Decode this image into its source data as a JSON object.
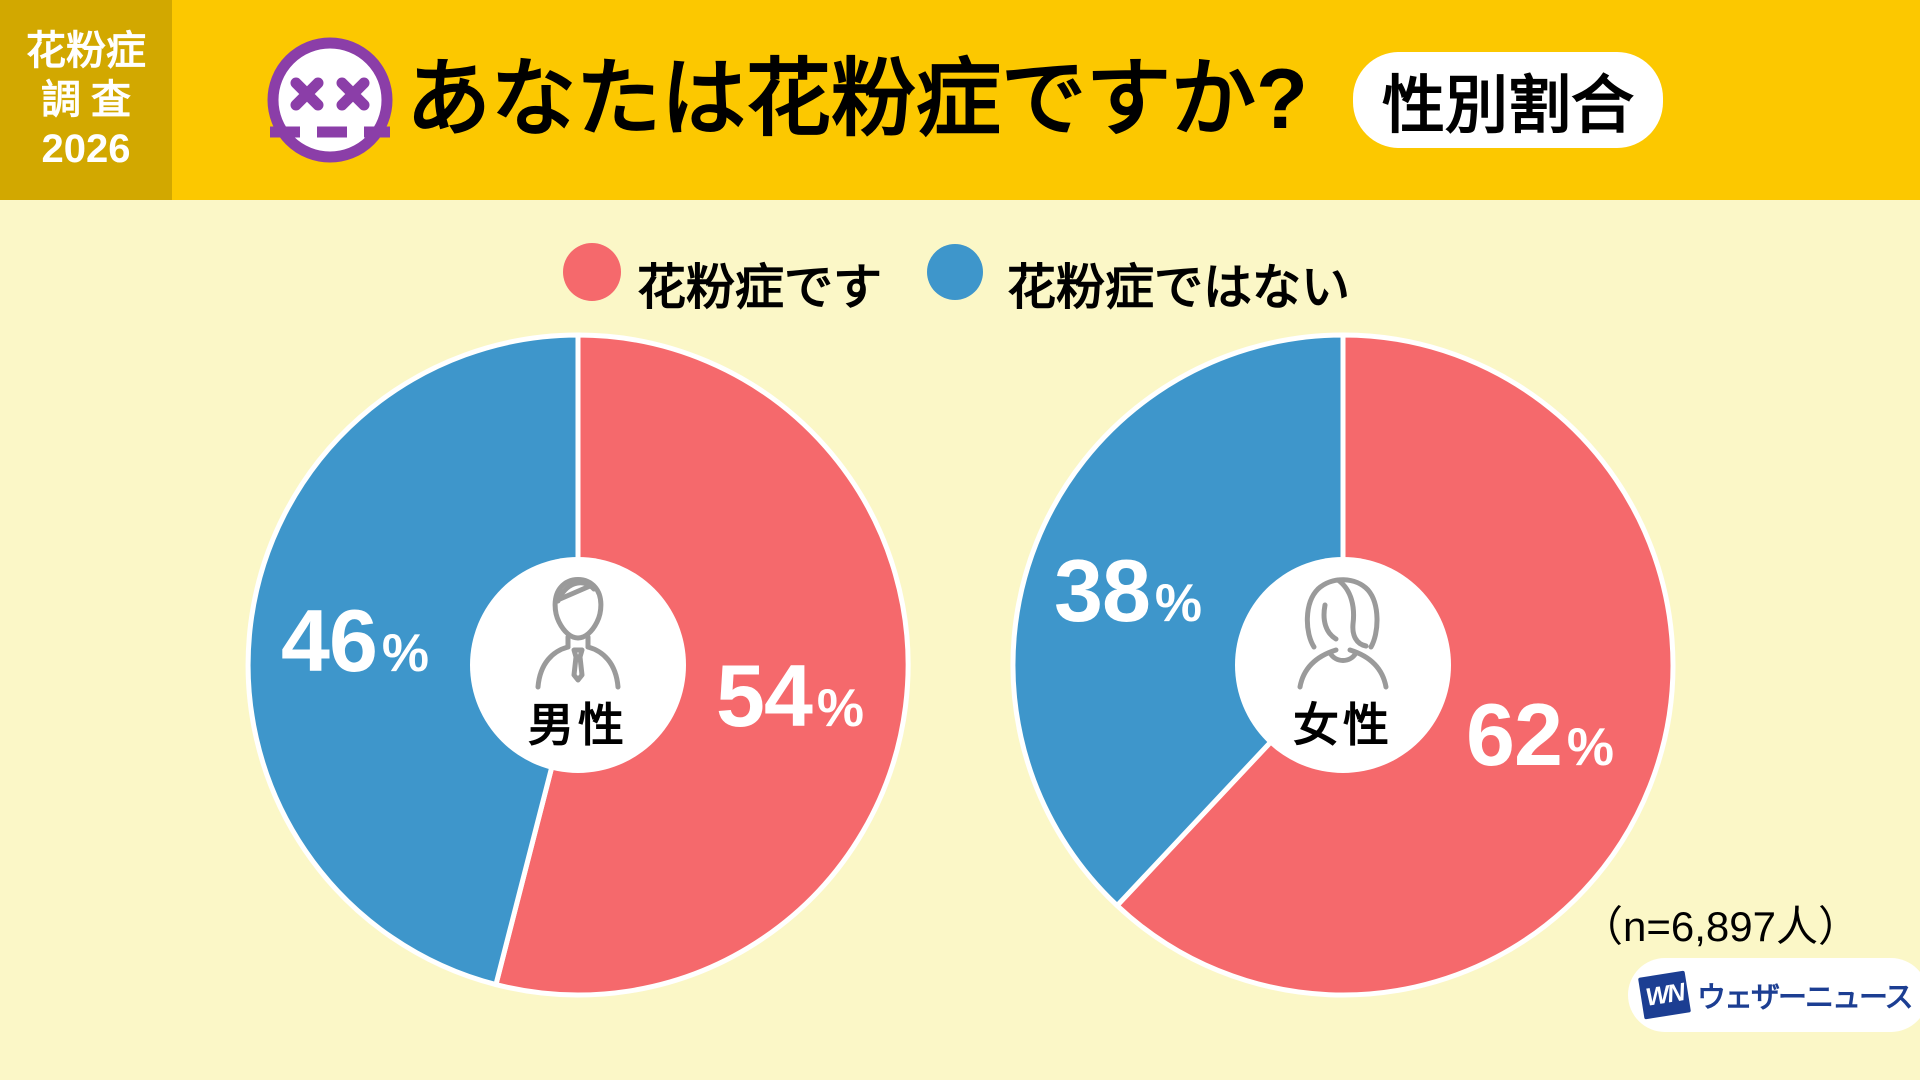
{
  "header": {
    "survey_badge_lines": [
      "花粉症",
      "調査",
      "2026"
    ],
    "title": "あなたは花粉症ですか?",
    "category_badge": "性別割合"
  },
  "legend": {
    "items": [
      {
        "label": "花粉症です",
        "color": "#F5696C"
      },
      {
        "label": "花粉症ではない",
        "color": "#3E96CB"
      }
    ]
  },
  "chart_data": [
    {
      "type": "pie",
      "group_label": "男性",
      "start_angle": "12-o'clock",
      "direction": "clockwise",
      "slices": [
        {
          "name": "花粉症です",
          "value": 54,
          "unit": "%",
          "color": "#F5696C"
        },
        {
          "name": "花粉症ではない",
          "value": 46,
          "unit": "%",
          "color": "#3E96CB"
        }
      ]
    },
    {
      "type": "pie",
      "group_label": "女性",
      "start_angle": "12-o'clock",
      "direction": "clockwise",
      "slices": [
        {
          "name": "花粉症です",
          "value": 62,
          "unit": "%",
          "color": "#F5696C"
        },
        {
          "name": "花粉症ではない",
          "value": 38,
          "unit": "%",
          "color": "#3E96CB"
        }
      ]
    }
  ],
  "footnote": "（n=6,897人）",
  "logo": {
    "mark": "WN",
    "name": "ウェザーニュース"
  },
  "colors": {
    "header_yellow": "#FCC800",
    "corner_gold": "#D2A800",
    "background_cream": "#FBF7C7",
    "pollen_red": "#F5696C",
    "not_pollen_blue": "#3E96CB",
    "icon_purple": "#8B3EA8",
    "logo_navy": "#1C3E92",
    "person_icon_gray": "#9A9A9A"
  }
}
